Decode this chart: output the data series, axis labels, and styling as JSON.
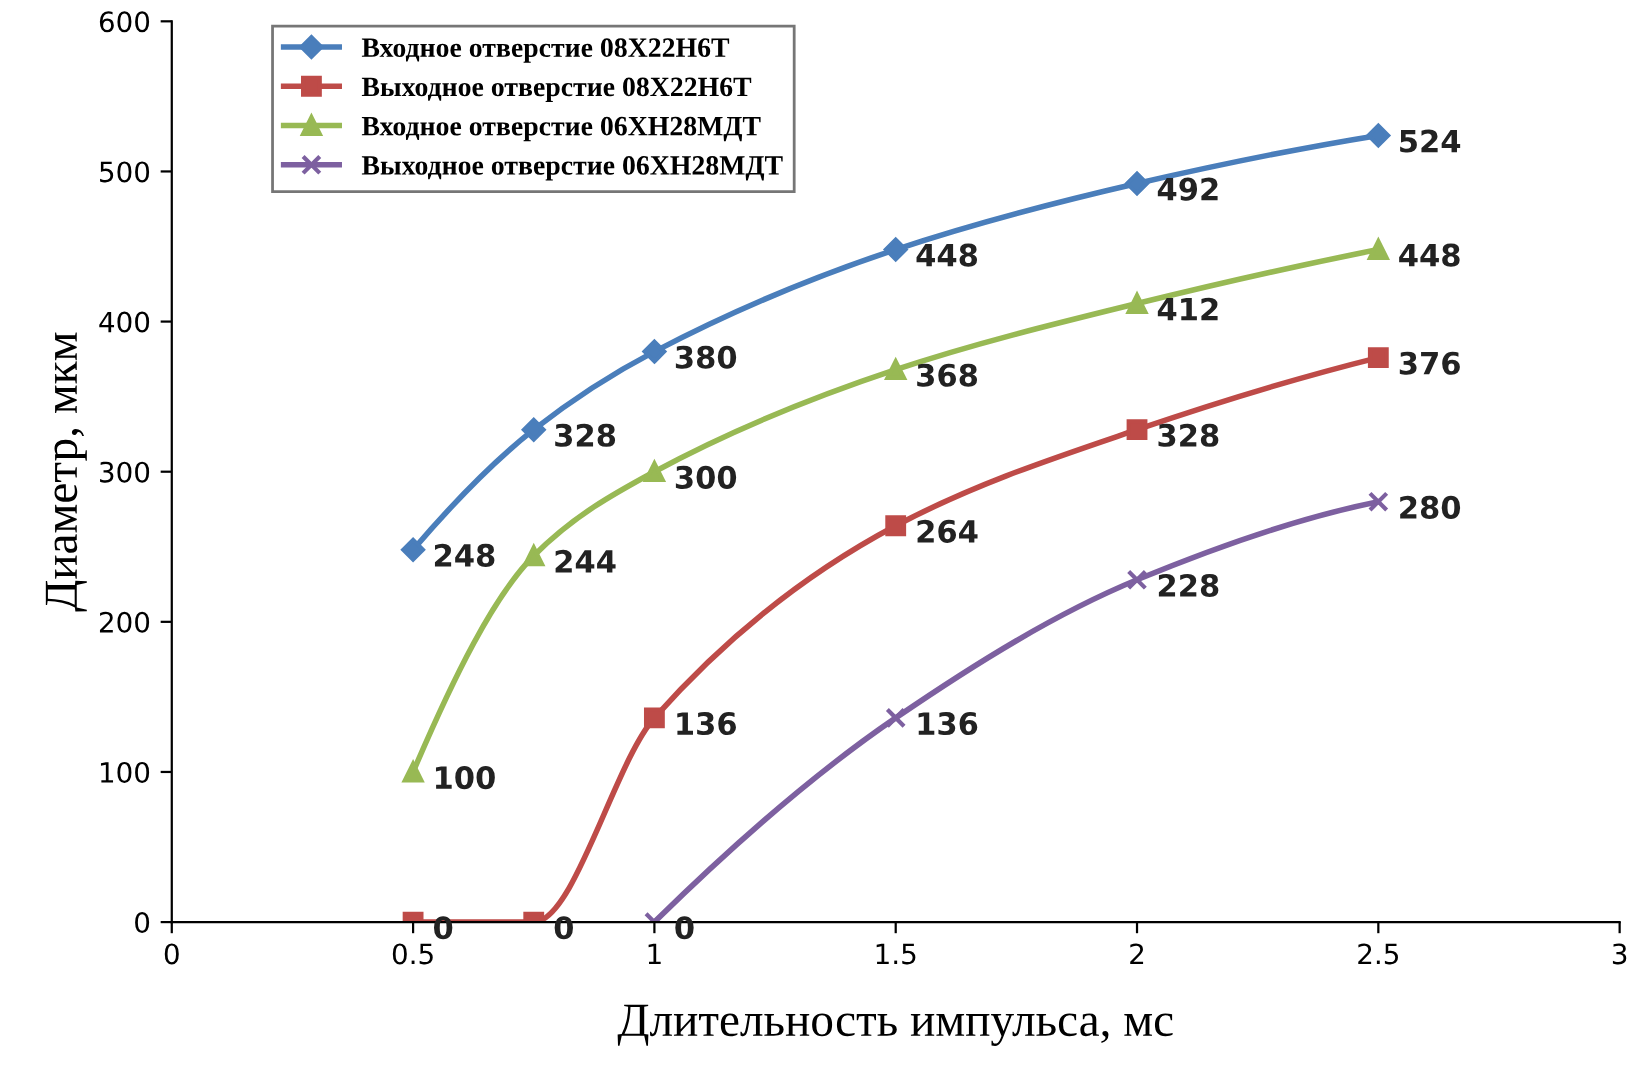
{
  "chart_data": {
    "type": "line",
    "xlabel": "Длительность импульса, мс",
    "ylabel": "Диаметр, мкм",
    "xlim": [
      0,
      3
    ],
    "xticks": [
      0,
      0.5,
      1,
      1.5,
      2,
      2.5,
      3
    ],
    "ylim": [
      0,
      600
    ],
    "yticks": [
      0,
      100,
      200,
      300,
      400,
      500,
      600
    ],
    "grid": false,
    "legend": "top left",
    "data_labels": true,
    "line_style": "solid",
    "series": [
      {
        "name": "Входное отверстие 08Х22Н6Т",
        "color": "#4a7ebb",
        "marker": "diamond",
        "x": [
          0.5,
          0.75,
          1,
          1.5,
          2,
          2.5
        ],
        "values": [
          248,
          328,
          380,
          448,
          492,
          524
        ]
      },
      {
        "name": "Выходное отверстие 08Х22Н6Т",
        "color": "#be4b48",
        "marker": "square",
        "x": [
          0.5,
          0.75,
          1,
          1.5,
          2,
          2.5
        ],
        "values": [
          0,
          0,
          136,
          264,
          328,
          376
        ]
      },
      {
        "name": "Входное отверстие 06ХН28МДТ",
        "color": "#98b954",
        "marker": "triangle",
        "x": [
          0.5,
          0.75,
          1,
          1.5,
          2,
          2.5
        ],
        "values": [
          100,
          244,
          300,
          368,
          412,
          448
        ]
      },
      {
        "name": "Выходное отверстие 06ХН28МДТ",
        "color": "#7d60a0",
        "marker": "cross",
        "x": [
          1,
          1.5,
          2,
          2.5
        ],
        "values": [
          0,
          136,
          228,
          280
        ]
      }
    ]
  }
}
